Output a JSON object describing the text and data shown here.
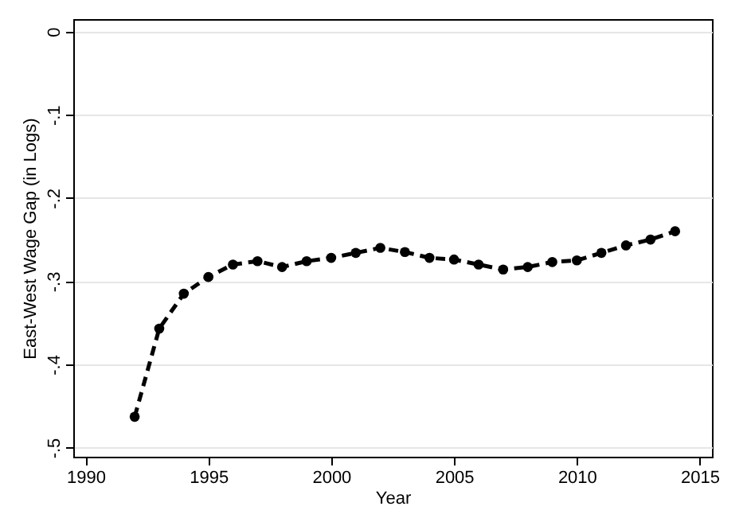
{
  "chart_data": {
    "type": "line",
    "xlabel": "Year",
    "ylabel": "East-West Wage Gap (in Logs)",
    "x": [
      1992,
      1993,
      1994,
      1995,
      1996,
      1997,
      1998,
      1999,
      2000,
      2001,
      2002,
      2003,
      2004,
      2005,
      2006,
      2007,
      2008,
      2009,
      2010,
      2011,
      2012,
      2013,
      2014
    ],
    "series": [
      {
        "color": "#000000",
        "values": [
          -0.463,
          -0.357,
          -0.315,
          -0.295,
          -0.28,
          -0.276,
          -0.283,
          -0.276,
          -0.272,
          -0.266,
          -0.26,
          -0.265,
          -0.272,
          -0.274,
          -0.28,
          -0.286,
          -0.283,
          -0.277,
          -0.275,
          -0.266,
          -0.257,
          -0.25,
          -0.24
        ]
      }
    ],
    "xlim": [
      1989.5,
      2015.5
    ],
    "xticks": [
      1990,
      1995,
      2000,
      2005,
      2010,
      2015
    ],
    "ylim": [
      -0.511,
      0.015
    ],
    "yticks": [
      {
        "value": -0.5,
        "label": "-.5"
      },
      {
        "value": -0.4,
        "label": "-.4"
      },
      {
        "value": -0.3,
        "label": "-.3"
      },
      {
        "value": -0.2,
        "label": "-.2"
      },
      {
        "value": -0.1,
        "label": "-.1"
      },
      0
    ],
    "grid": "y",
    "marker": "circle",
    "line_style": "dashed"
  }
}
